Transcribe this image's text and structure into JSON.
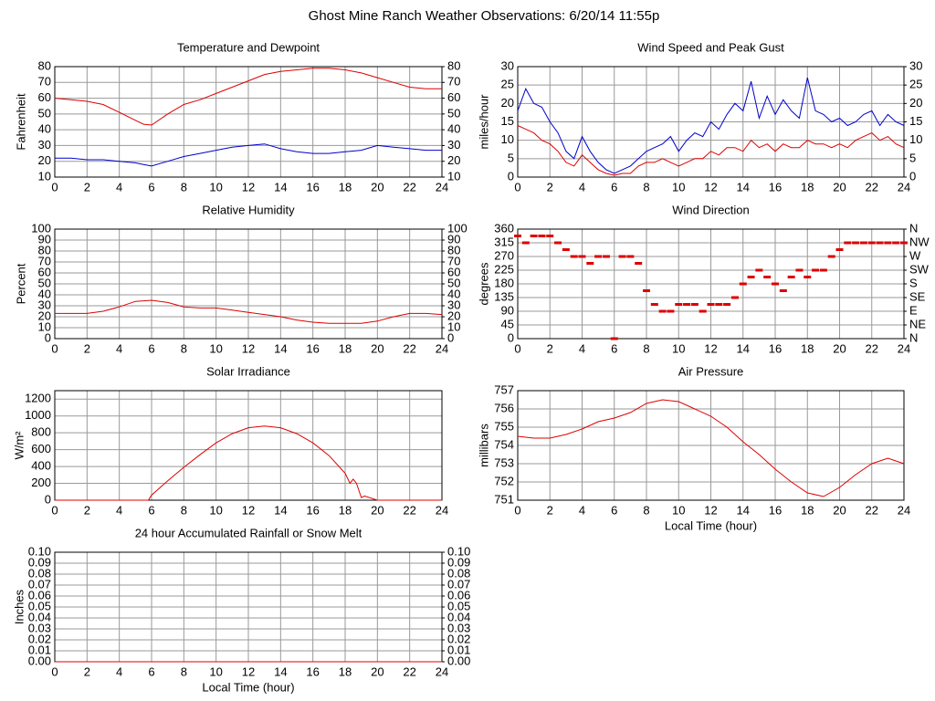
{
  "title": "Ghost Mine Ranch Weather Observations: 6/20/14 11:55p",
  "chart_data": [
    {
      "type": "line",
      "title": "Temperature and Dewpoint",
      "ylabel": "Fahrenheit",
      "x": [
        0,
        1,
        2,
        3,
        4,
        5,
        5.5,
        6,
        7,
        8,
        9,
        10,
        11,
        12,
        13,
        14,
        15,
        16,
        17,
        18,
        19,
        20,
        21,
        22,
        23,
        24
      ],
      "series": [
        {
          "color": "#dd0000",
          "values": [
            60,
            59,
            58,
            56,
            51,
            46,
            43.5,
            43,
            50,
            56,
            59,
            63,
            67,
            71,
            75,
            77,
            78,
            79,
            79,
            78,
            76,
            73,
            70,
            67,
            66,
            66
          ]
        },
        {
          "color": "#0000cc",
          "values": [
            22,
            22,
            21,
            21,
            20,
            19,
            18,
            17,
            20,
            23,
            25,
            27,
            29,
            30,
            31,
            28,
            26,
            25,
            25,
            26,
            27,
            30,
            29,
            28,
            27,
            27
          ]
        }
      ],
      "xlim": [
        0,
        24
      ],
      "xticks": [
        0,
        2,
        4,
        6,
        8,
        10,
        12,
        14,
        16,
        18,
        20,
        22,
        24
      ],
      "ylim": [
        10,
        80
      ],
      "yticks": [
        10,
        20,
        30,
        40,
        50,
        60,
        70,
        80
      ],
      "y2lim": [
        10,
        80
      ],
      "y2ticks": [
        10,
        20,
        30,
        40,
        50,
        60,
        70,
        80
      ],
      "grid": true
    },
    {
      "type": "line",
      "title": "Wind Speed and Peak Gust",
      "ylabel": "miles/hour",
      "x": [
        0,
        0.5,
        1,
        1.5,
        2,
        2.5,
        3,
        3.5,
        4,
        4.5,
        5,
        5.5,
        6,
        6.5,
        7,
        7.5,
        8,
        8.5,
        9,
        9.5,
        10,
        10.5,
        11,
        11.5,
        12,
        12.5,
        13,
        13.5,
        14,
        14.5,
        15,
        15.5,
        16,
        16.5,
        17,
        17.5,
        18,
        18.5,
        19,
        19.5,
        20,
        20.5,
        21,
        21.5,
        22,
        22.5,
        23,
        23.5,
        24
      ],
      "series": [
        {
          "color": "#0000cc",
          "values": [
            18,
            24,
            20,
            19,
            15,
            12,
            7,
            5,
            11,
            7,
            4,
            2,
            1,
            2,
            3,
            5,
            7,
            8,
            9,
            11,
            7,
            10,
            12,
            11,
            15,
            13,
            17,
            20,
            18,
            26,
            16,
            22,
            17,
            21,
            18,
            16,
            27,
            18,
            17,
            15,
            16,
            14,
            15,
            17,
            18,
            14,
            17,
            15,
            14
          ]
        },
        {
          "color": "#dd0000",
          "values": [
            14,
            13,
            12,
            10,
            9,
            7,
            4,
            3,
            6,
            4,
            2,
            1,
            0.5,
            1,
            1,
            3,
            4,
            4,
            5,
            4,
            3,
            4,
            5,
            5,
            7,
            6,
            8,
            8,
            7,
            10,
            8,
            9,
            7,
            9,
            8,
            8,
            10,
            9,
            9,
            8,
            9,
            8,
            10,
            11,
            12,
            10,
            11,
            9,
            8
          ]
        }
      ],
      "xlim": [
        0,
        24
      ],
      "xticks": [
        0,
        2,
        4,
        6,
        8,
        10,
        12,
        14,
        16,
        18,
        20,
        22,
        24
      ],
      "ylim": [
        0,
        30
      ],
      "yticks": [
        0,
        5,
        10,
        15,
        20,
        25,
        30
      ],
      "y2lim": [
        0,
        30
      ],
      "y2ticks": [
        0,
        5,
        10,
        15,
        20,
        25,
        30
      ],
      "grid": true
    },
    {
      "type": "line",
      "title": "Relative Humidity",
      "ylabel": "Percent",
      "x": [
        0,
        1,
        2,
        3,
        4,
        5,
        6,
        7,
        8,
        9,
        10,
        11,
        12,
        13,
        14,
        15,
        16,
        17,
        18,
        19,
        20,
        21,
        22,
        23,
        24
      ],
      "values": [
        23,
        23,
        23,
        25,
        29,
        34,
        35,
        33,
        29,
        28,
        28,
        26,
        24,
        22,
        20,
        17,
        15,
        14,
        14,
        14,
        16,
        20,
        23,
        23,
        22
      ],
      "color": "#dd0000",
      "xlim": [
        0,
        24
      ],
      "xticks": [
        0,
        2,
        4,
        6,
        8,
        10,
        12,
        14,
        16,
        18,
        20,
        22,
        24
      ],
      "ylim": [
        0,
        100
      ],
      "yticks": [
        0,
        10,
        20,
        30,
        40,
        50,
        60,
        70,
        80,
        90,
        100
      ],
      "y2lim": [
        0,
        100
      ],
      "y2ticks": [
        0,
        10,
        20,
        30,
        40,
        50,
        60,
        70,
        80,
        90,
        100
      ],
      "grid": true
    },
    {
      "type": "scatter",
      "title": "Wind Direction",
      "ylabel": "degrees",
      "x": [
        0,
        0.5,
        1,
        1.5,
        2,
        2.5,
        3,
        3.5,
        4,
        4.5,
        5,
        5.5,
        6,
        6.5,
        7,
        7.5,
        8,
        8.5,
        9,
        9.5,
        10,
        10.5,
        11,
        11.5,
        12,
        12.5,
        13,
        13.5,
        14,
        14.5,
        15,
        15.5,
        16,
        16.5,
        17,
        17.5,
        18,
        18.5,
        19,
        19.5,
        20,
        20.5,
        21,
        21.5,
        22,
        22.5,
        23,
        23.5,
        24
      ],
      "values": [
        337.5,
        315,
        337.5,
        337.5,
        337.5,
        315,
        292.5,
        270,
        270,
        247.5,
        270,
        270,
        0,
        270,
        270,
        247.5,
        157.5,
        112.5,
        90,
        90,
        112.5,
        112.5,
        112.5,
        90,
        112.5,
        112.5,
        112.5,
        135,
        180,
        202.5,
        225,
        202.5,
        180,
        157.5,
        202.5,
        225,
        202.5,
        225,
        225,
        270,
        292.5,
        315,
        315,
        315,
        315,
        315,
        315,
        315,
        315
      ],
      "color": "#dd0000",
      "xlim": [
        0,
        24
      ],
      "xticks": [
        0,
        2,
        4,
        6,
        8,
        10,
        12,
        14,
        16,
        18,
        20,
        22,
        24
      ],
      "ylim": [
        0,
        360
      ],
      "yticks": [
        0,
        45,
        90,
        135,
        180,
        225,
        270,
        315,
        360
      ],
      "y2lim": [
        0,
        360
      ],
      "y2ticks": [
        {
          "value": 0,
          "label": "N"
        },
        {
          "value": 45,
          "label": "NE"
        },
        {
          "value": 90,
          "label": "E"
        },
        {
          "value": 135,
          "label": "SE"
        },
        {
          "value": 180,
          "label": "S"
        },
        {
          "value": 225,
          "label": "SW"
        },
        {
          "value": 270,
          "label": "W"
        },
        {
          "value": 315,
          "label": "NW"
        },
        {
          "value": 360,
          "label": "N"
        }
      ],
      "grid": true
    },
    {
      "type": "line",
      "title": "Solar Irradiance",
      "ylabel": "W/m²",
      "x": [
        0,
        2,
        4,
        5.8,
        6,
        7,
        8,
        9,
        10,
        11,
        12,
        13,
        14,
        15,
        16,
        17,
        18,
        18.3,
        18.5,
        18.7,
        19,
        19.2,
        20,
        22,
        24
      ],
      "values": [
        0,
        0,
        0,
        0,
        60,
        230,
        390,
        540,
        680,
        790,
        860,
        880,
        860,
        790,
        680,
        530,
        320,
        200,
        250,
        200,
        30,
        50,
        0,
        0,
        0
      ],
      "color": "#dd0000",
      "xlim": [
        0,
        24
      ],
      "xticks": [
        0,
        2,
        4,
        6,
        8,
        10,
        12,
        14,
        16,
        18,
        20,
        22,
        24
      ],
      "ylim": [
        0,
        1300
      ],
      "yticks": [
        0,
        200,
        400,
        600,
        800,
        1000,
        1200
      ],
      "grid": true
    },
    {
      "type": "line",
      "title": "Air Pressure",
      "ylabel": "millibars",
      "xlabel": "Local Time (hour)",
      "x": [
        0,
        1,
        2,
        3,
        4,
        5,
        6,
        7,
        8,
        9,
        10,
        11,
        12,
        13,
        14,
        15,
        16,
        17,
        18,
        19,
        20,
        21,
        22,
        23,
        24
      ],
      "values": [
        754.5,
        754.4,
        754.4,
        754.6,
        754.9,
        755.3,
        755.5,
        755.8,
        756.3,
        756.5,
        756.4,
        756.0,
        755.6,
        755.0,
        754.2,
        753.5,
        752.7,
        752.0,
        751.4,
        751.2,
        751.7,
        752.4,
        753.0,
        753.3,
        753.0
      ],
      "color": "#dd0000",
      "xlim": [
        0,
        24
      ],
      "xticks": [
        0,
        2,
        4,
        6,
        8,
        10,
        12,
        14,
        16,
        18,
        20,
        22,
        24
      ],
      "ylim": [
        751,
        757
      ],
      "yticks": [
        751,
        752,
        753,
        754,
        755,
        756,
        757
      ],
      "grid": true
    },
    {
      "type": "line",
      "title": "24 hour Accumulated Rainfall or Snow Melt",
      "ylabel": "Inches",
      "xlabel": "Local Time (hour)",
      "x": [
        0,
        24
      ],
      "values": [
        0,
        0
      ],
      "color": "#dd0000",
      "xlim": [
        0,
        24
      ],
      "xticks": [
        0,
        2,
        4,
        6,
        8,
        10,
        12,
        14,
        16,
        18,
        20,
        22,
        24
      ],
      "ylim": [
        0,
        0.1
      ],
      "yticks": [
        {
          "value": 0,
          "label": "0.00"
        },
        {
          "value": 0.01,
          "label": "0.01"
        },
        {
          "value": 0.02,
          "label": "0.02"
        },
        {
          "value": 0.03,
          "label": "0.03"
        },
        {
          "value": 0.04,
          "label": "0.04"
        },
        {
          "value": 0.05,
          "label": "0.05"
        },
        {
          "value": 0.06,
          "label": "0.06"
        },
        {
          "value": 0.07,
          "label": "0.07"
        },
        {
          "value": 0.08,
          "label": "0.08"
        },
        {
          "value": 0.09,
          "label": "0.09"
        },
        {
          "value": 0.1,
          "label": "0.10"
        }
      ],
      "y2lim": [
        0,
        0.1
      ],
      "y2ticks": [
        {
          "value": 0,
          "label": "0.00"
        },
        {
          "value": 0.01,
          "label": "0.01"
        },
        {
          "value": 0.02,
          "label": "0.02"
        },
        {
          "value": 0.03,
          "label": "0.03"
        },
        {
          "value": 0.04,
          "label": "0.04"
        },
        {
          "value": 0.05,
          "label": "0.05"
        },
        {
          "value": 0.06,
          "label": "0.06"
        },
        {
          "value": 0.07,
          "label": "0.07"
        },
        {
          "value": 0.08,
          "label": "0.08"
        },
        {
          "value": 0.09,
          "label": "0.09"
        },
        {
          "value": 0.1,
          "label": "0.10"
        }
      ],
      "grid": true
    }
  ]
}
